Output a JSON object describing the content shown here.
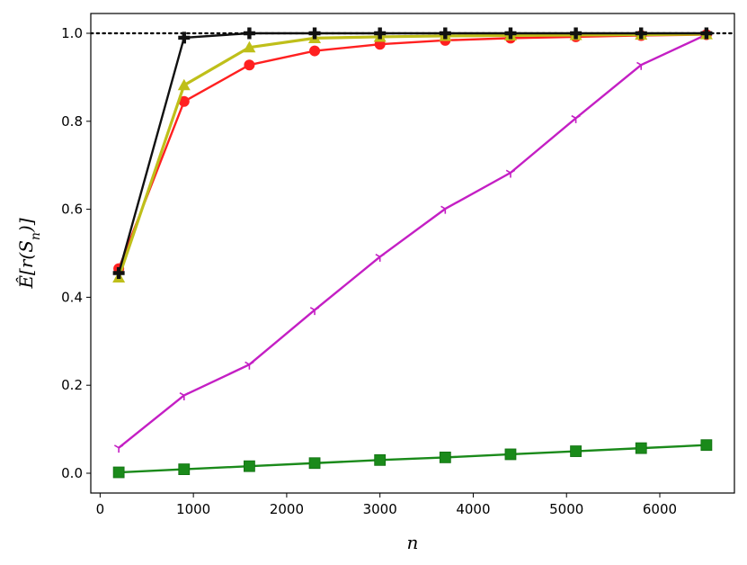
{
  "chart_data": {
    "type": "line",
    "xlabel": "n",
    "ylabel": "Ê[r(S_n)]",
    "xlim": [
      -100,
      6800
    ],
    "ylim": [
      -0.045,
      1.045
    ],
    "xticks": [
      0,
      1000,
      2000,
      3000,
      4000,
      5000,
      6000
    ],
    "xtick_labels": [
      "0",
      "1000",
      "2000",
      "3000",
      "4000",
      "5000",
      "6000"
    ],
    "yticks": [
      0.0,
      0.2,
      0.4,
      0.6,
      0.8,
      1.0
    ],
    "ytick_labels": [
      "0.0",
      "0.2",
      "0.4",
      "0.6",
      "0.8",
      "1.0"
    ],
    "grid": false,
    "reference_line": {
      "y": 1.0,
      "style": "dotted",
      "color": "#000000"
    },
    "x": [
      200,
      900,
      1600,
      2300,
      3000,
      3700,
      4400,
      5100,
      5800,
      6500
    ],
    "series": [
      {
        "color": "#ff2020",
        "marker": "circle",
        "values": [
          0.465,
          0.845,
          0.928,
          0.96,
          0.975,
          0.984,
          0.989,
          0.992,
          0.995,
          0.997
        ]
      },
      {
        "color": "#bfbf1a",
        "marker": "triangle",
        "values": [
          0.445,
          0.882,
          0.968,
          0.989,
          0.992,
          0.994,
          0.995,
          0.996,
          0.997,
          0.998
        ]
      },
      {
        "color": "#111111",
        "marker": "plus",
        "values": [
          0.455,
          0.99,
          1.0,
          1.0,
          1.0,
          1.0,
          1.0,
          1.0,
          1.0,
          1.0
        ]
      },
      {
        "color": "#c41fc4",
        "marker": "tri_down",
        "values": [
          0.058,
          0.177,
          0.247,
          0.371,
          0.492,
          0.601,
          0.683,
          0.807,
          0.928,
          0.997
        ]
      },
      {
        "color": "#1a8a1a",
        "marker": "square",
        "values": [
          0.002,
          0.009,
          0.016,
          0.023,
          0.03,
          0.036,
          0.043,
          0.05,
          0.057,
          0.064
        ]
      }
    ]
  }
}
